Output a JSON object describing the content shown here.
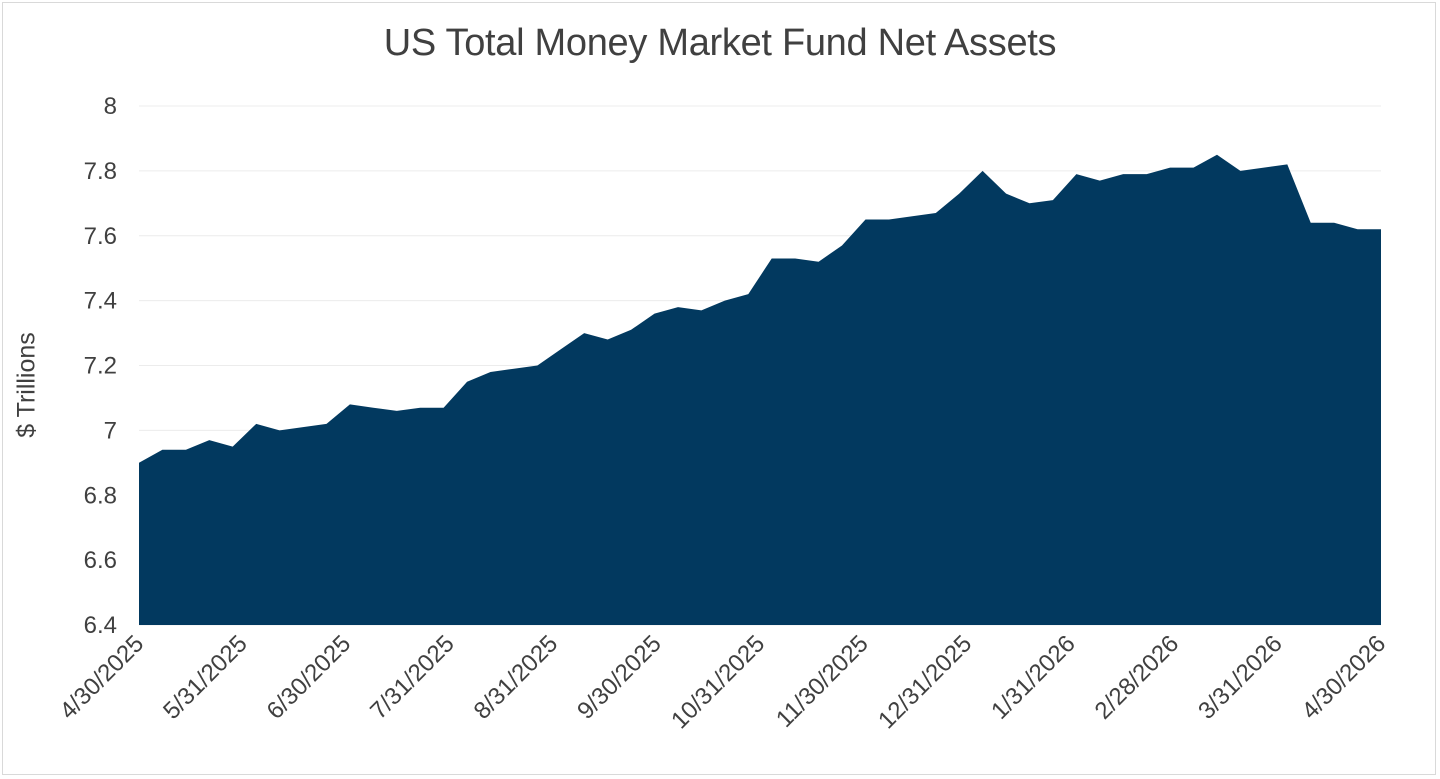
{
  "chart_data": {
    "type": "area",
    "title": "US Total Money Market Fund Net Assets",
    "xlabel": "",
    "ylabel": "$ Trillions",
    "ylim": [
      6.4,
      8
    ],
    "yticks": [
      6.4,
      6.6,
      6.8,
      7,
      7.2,
      7.4,
      7.6,
      7.8,
      8
    ],
    "ytick_labels": [
      "6.4",
      "6.6",
      "6.8",
      "7",
      "7.2",
      "7.4",
      "7.6",
      "7.8",
      "8"
    ],
    "xtick_labels": [
      "4/30/2025",
      "5/31/2025",
      "6/30/2025",
      "7/31/2025",
      "8/31/2025",
      "9/30/2025",
      "10/31/2025",
      "11/30/2025",
      "12/31/2025",
      "1/31/2026",
      "2/28/2026",
      "3/31/2026",
      "4/30/2026"
    ],
    "grid": true,
    "legend": "none",
    "fill_color": "#02395F",
    "values": [
      6.9,
      6.94,
      6.94,
      6.97,
      6.95,
      7.02,
      7.0,
      7.01,
      7.02,
      7.08,
      7.07,
      7.06,
      7.07,
      7.07,
      7.15,
      7.18,
      7.19,
      7.2,
      7.25,
      7.3,
      7.28,
      7.31,
      7.36,
      7.38,
      7.37,
      7.4,
      7.42,
      7.53,
      7.53,
      7.52,
      7.57,
      7.65,
      7.65,
      7.66,
      7.67,
      7.73,
      7.8,
      7.73,
      7.7,
      7.71,
      7.79,
      7.77,
      7.79,
      7.79,
      7.81,
      7.81,
      7.85,
      7.8,
      7.81,
      7.82,
      7.64,
      7.64,
      7.62,
      7.62
    ]
  }
}
